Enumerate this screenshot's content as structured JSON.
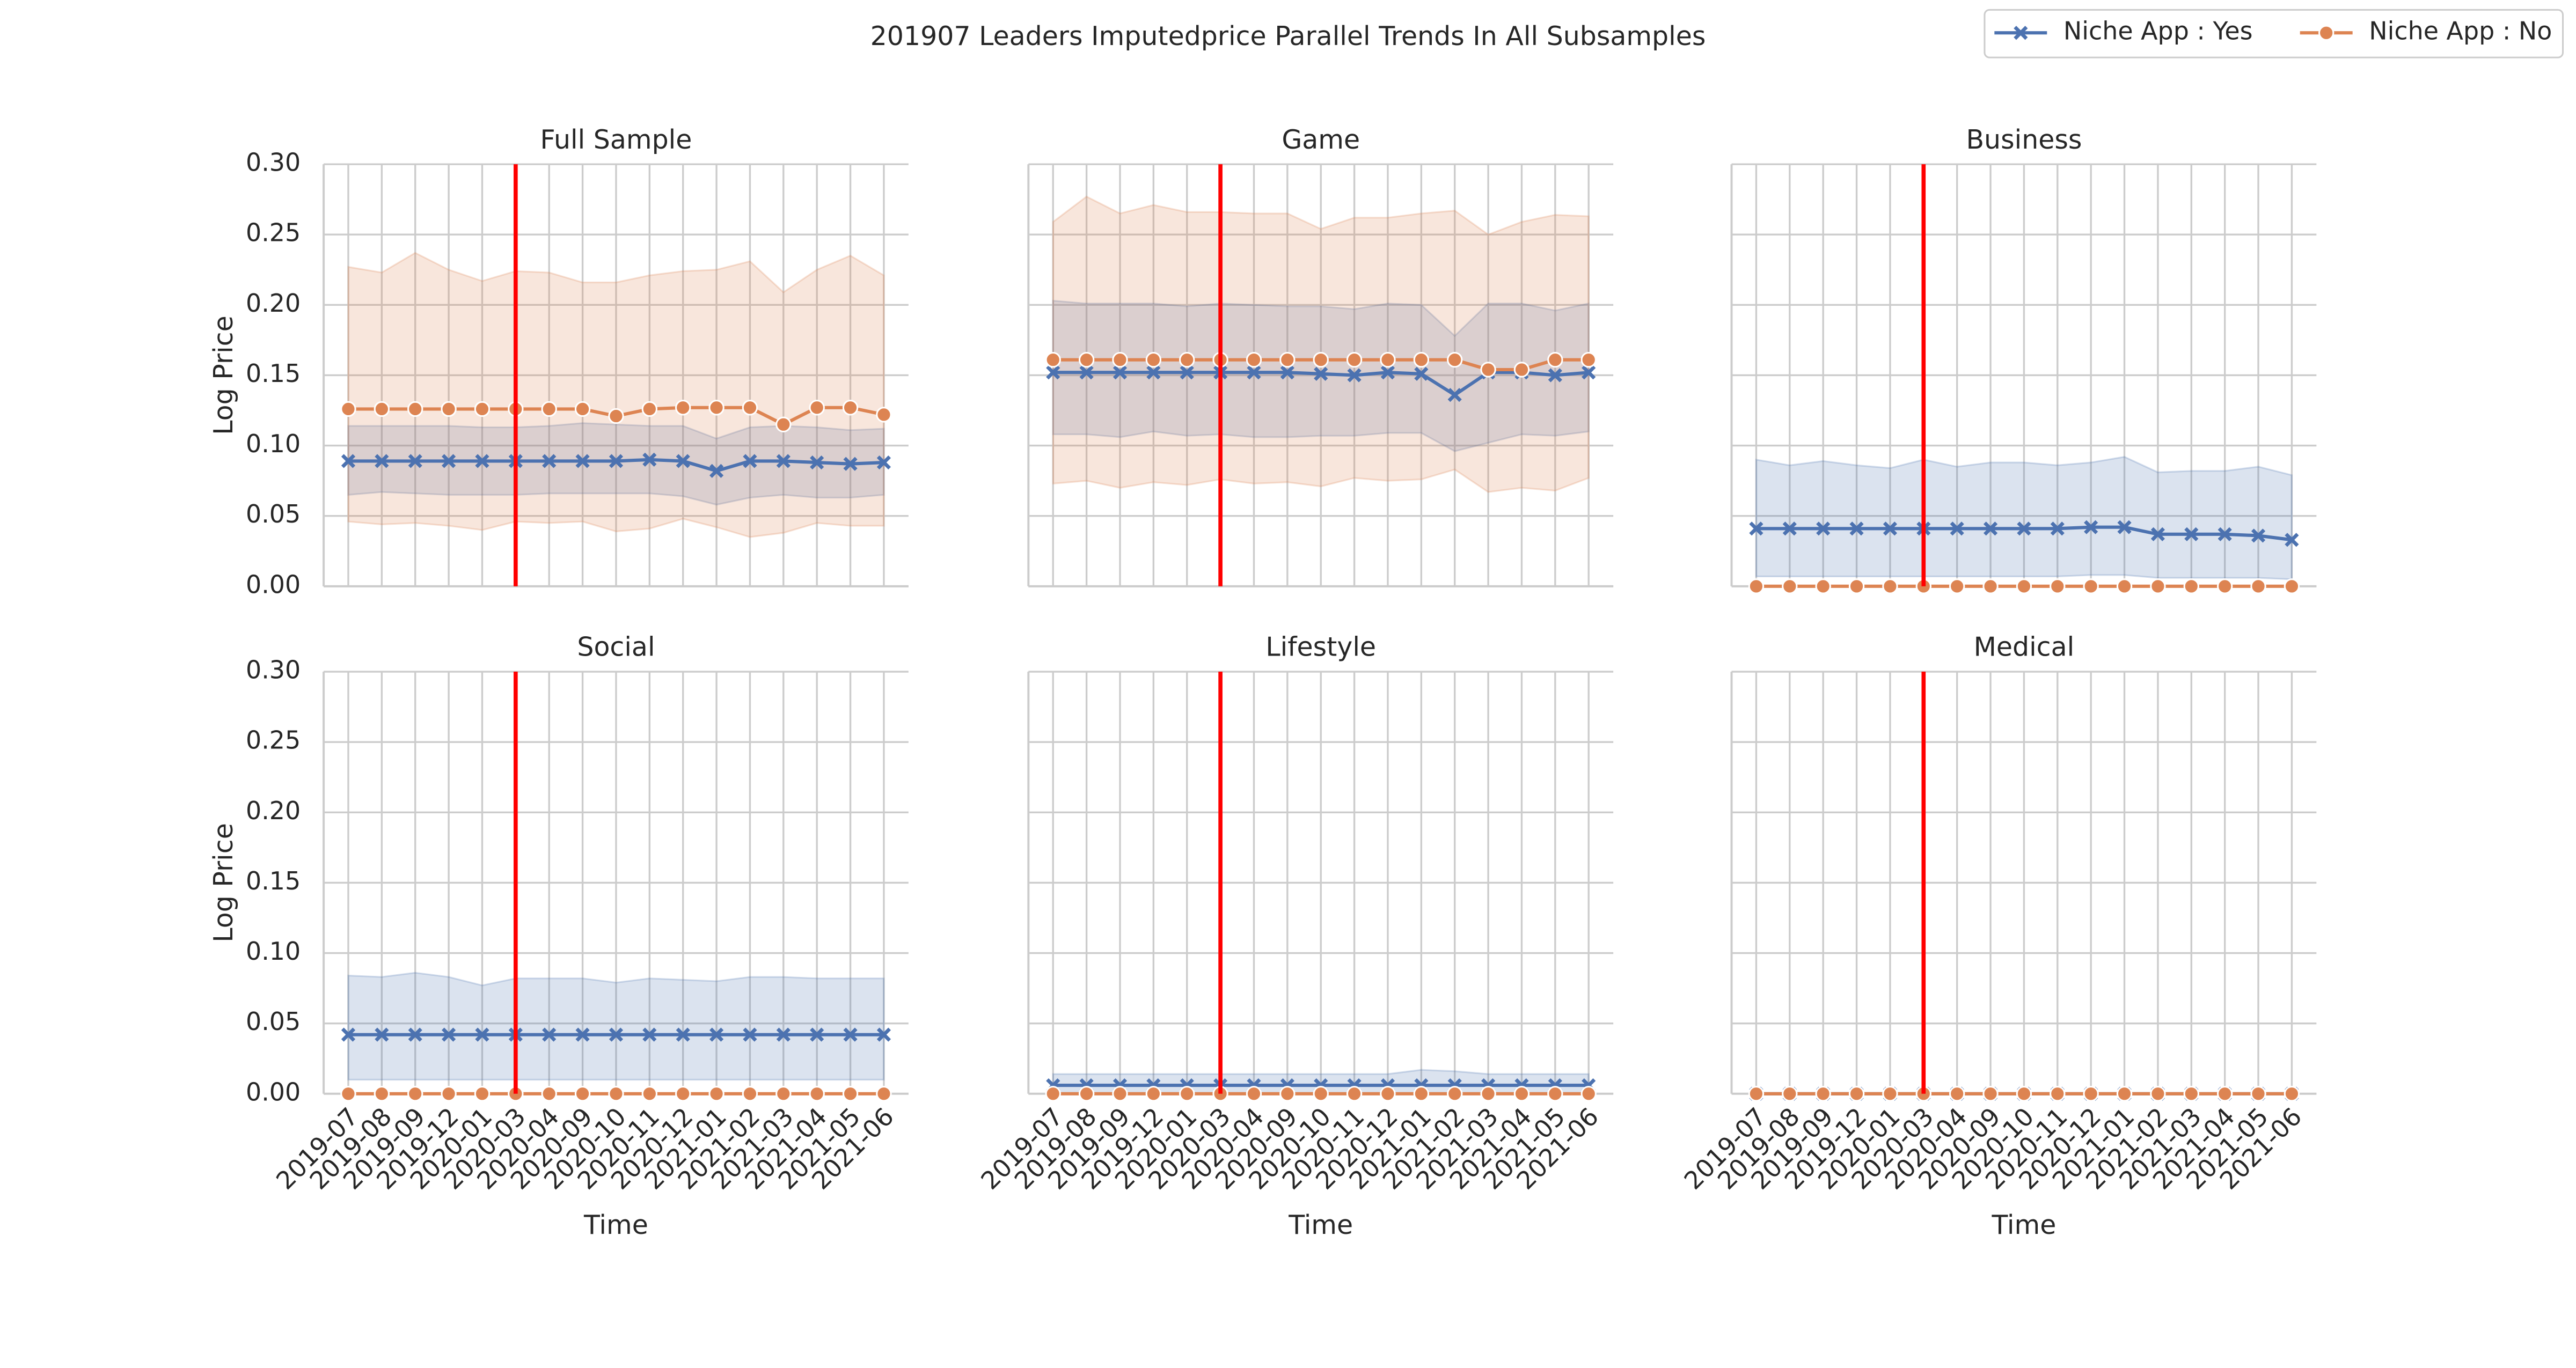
{
  "title": "201907 Leaders Imputedprice Parallel Trends In All Subsamples",
  "chart_data": [
    {
      "type": "line",
      "title": "Full Sample",
      "ylabel": "Log Price",
      "show_ytick_labels": true,
      "show_xtick_labels": false,
      "categories": [
        "2019-07",
        "2019-08",
        "2019-09",
        "2019-12",
        "2020-01",
        "2020-03",
        "2020-04",
        "2020-09",
        "2020-10",
        "2020-11",
        "2020-12",
        "2021-01",
        "2021-02",
        "2021-03",
        "2021-04",
        "2021-05",
        "2021-06"
      ],
      "vline": "2020-03",
      "vline_color": "#ff0000",
      "ylim": [
        0,
        0.3
      ],
      "yticks": [
        {
          "value": 0,
          "label": "0.00"
        },
        {
          "value": 0.05,
          "label": "0.05"
        },
        {
          "value": 0.1,
          "label": "0.10"
        },
        {
          "value": 0.15,
          "label": "0.15"
        },
        {
          "value": 0.2,
          "label": "0.20"
        },
        {
          "value": 0.25,
          "label": "0.25"
        },
        {
          "value": 0.3,
          "label": "0.30"
        }
      ],
      "grid": true,
      "series": [
        {
          "name": "Niche App : Yes",
          "color": "#4c72b0",
          "marker": "x",
          "values": [
            0.089,
            0.089,
            0.089,
            0.089,
            0.089,
            0.089,
            0.089,
            0.089,
            0.089,
            0.09,
            0.089,
            0.082,
            0.089,
            0.089,
            0.088,
            0.087,
            0.088
          ],
          "ci_lower": [
            0.065,
            0.067,
            0.066,
            0.065,
            0.065,
            0.065,
            0.066,
            0.066,
            0.066,
            0.066,
            0.064,
            0.058,
            0.063,
            0.065,
            0.063,
            0.063,
            0.065
          ],
          "ci_upper": [
            0.114,
            0.114,
            0.114,
            0.114,
            0.113,
            0.113,
            0.114,
            0.116,
            0.115,
            0.114,
            0.114,
            0.105,
            0.113,
            0.114,
            0.113,
            0.111,
            0.112
          ]
        },
        {
          "name": "Niche App : No",
          "color": "#dd8452",
          "marker": "o",
          "values": [
            0.126,
            0.126,
            0.126,
            0.126,
            0.126,
            0.126,
            0.126,
            0.126,
            0.121,
            0.126,
            0.127,
            0.127,
            0.127,
            0.115,
            0.127,
            0.127,
            0.122
          ],
          "ci_lower": [
            0.046,
            0.044,
            0.045,
            0.043,
            0.04,
            0.046,
            0.045,
            0.046,
            0.039,
            0.041,
            0.048,
            0.042,
            0.035,
            0.038,
            0.045,
            0.043,
            0.043
          ],
          "ci_upper": [
            0.227,
            0.223,
            0.237,
            0.225,
            0.217,
            0.224,
            0.223,
            0.216,
            0.216,
            0.221,
            0.224,
            0.225,
            0.231,
            0.209,
            0.225,
            0.235,
            0.221
          ]
        }
      ]
    },
    {
      "type": "line",
      "title": "Game",
      "show_ytick_labels": false,
      "show_xtick_labels": false,
      "categories": [
        "2019-07",
        "2019-08",
        "2019-09",
        "2019-12",
        "2020-01",
        "2020-03",
        "2020-04",
        "2020-09",
        "2020-10",
        "2020-11",
        "2020-12",
        "2021-01",
        "2021-02",
        "2021-03",
        "2021-04",
        "2021-05",
        "2021-06"
      ],
      "vline": "2020-03",
      "vline_color": "#ff0000",
      "ylim": [
        0,
        0.3
      ],
      "yticks": [
        0,
        0.05,
        0.1,
        0.15,
        0.2,
        0.25,
        0.3
      ],
      "grid": true,
      "series": [
        {
          "name": "Niche App : Yes",
          "color": "#4c72b0",
          "marker": "x",
          "values": [
            0.152,
            0.152,
            0.152,
            0.152,
            0.152,
            0.152,
            0.152,
            0.152,
            0.151,
            0.15,
            0.152,
            0.151,
            0.136,
            0.152,
            0.152,
            0.15,
            0.152
          ],
          "ci_lower": [
            0.108,
            0.108,
            0.106,
            0.11,
            0.107,
            0.108,
            0.106,
            0.106,
            0.107,
            0.107,
            0.109,
            0.109,
            0.096,
            0.102,
            0.108,
            0.107,
            0.11
          ],
          "ci_upper": [
            0.203,
            0.201,
            0.201,
            0.201,
            0.199,
            0.201,
            0.2,
            0.199,
            0.199,
            0.197,
            0.201,
            0.2,
            0.178,
            0.201,
            0.201,
            0.196,
            0.201
          ]
        },
        {
          "name": "Niche App : No",
          "color": "#dd8452",
          "marker": "o",
          "values": [
            0.161,
            0.161,
            0.161,
            0.161,
            0.161,
            0.161,
            0.161,
            0.161,
            0.161,
            0.161,
            0.161,
            0.161,
            0.161,
            0.154,
            0.154,
            0.161,
            0.161
          ],
          "ci_lower": [
            0.073,
            0.075,
            0.07,
            0.074,
            0.072,
            0.076,
            0.073,
            0.074,
            0.071,
            0.077,
            0.075,
            0.076,
            0.083,
            0.067,
            0.07,
            0.068,
            0.077
          ],
          "ci_upper": [
            0.259,
            0.277,
            0.265,
            0.271,
            0.266,
            0.266,
            0.265,
            0.265,
            0.254,
            0.262,
            0.262,
            0.265,
            0.267,
            0.25,
            0.259,
            0.264,
            0.263
          ]
        }
      ]
    },
    {
      "type": "line",
      "title": "Business",
      "show_ytick_labels": false,
      "show_xtick_labels": false,
      "categories": [
        "2019-07",
        "2019-08",
        "2019-09",
        "2019-12",
        "2020-01",
        "2020-03",
        "2020-04",
        "2020-09",
        "2020-10",
        "2020-11",
        "2020-12",
        "2021-01",
        "2021-02",
        "2021-03",
        "2021-04",
        "2021-05",
        "2021-06"
      ],
      "vline": "2020-03",
      "vline_color": "#ff0000",
      "ylim": [
        0,
        0.3
      ],
      "yticks": [
        0,
        0.05,
        0.1,
        0.15,
        0.2,
        0.25,
        0.3
      ],
      "grid": true,
      "series": [
        {
          "name": "Niche App : Yes",
          "color": "#4c72b0",
          "marker": "x",
          "values": [
            0.041,
            0.041,
            0.041,
            0.041,
            0.041,
            0.041,
            0.041,
            0.041,
            0.041,
            0.041,
            0.042,
            0.042,
            0.037,
            0.037,
            0.037,
            0.036,
            0.033
          ],
          "ci_lower": [
            0.007,
            0.007,
            0.007,
            0.007,
            0.007,
            0.007,
            0.007,
            0.007,
            0.007,
            0.007,
            0.008,
            0.008,
            0.006,
            0.006,
            0.006,
            0.006,
            0.005
          ],
          "ci_upper": [
            0.09,
            0.086,
            0.089,
            0.086,
            0.084,
            0.09,
            0.085,
            0.088,
            0.088,
            0.086,
            0.088,
            0.092,
            0.081,
            0.082,
            0.082,
            0.085,
            0.079
          ]
        },
        {
          "name": "Niche App : No",
          "color": "#dd8452",
          "marker": "o",
          "values": [
            0,
            0,
            0,
            0,
            0,
            0,
            0,
            0,
            0,
            0,
            0,
            0,
            0,
            0,
            0,
            0,
            0
          ]
        }
      ]
    },
    {
      "type": "line",
      "title": "Social",
      "ylabel": "Log Price",
      "xlabel": "Time",
      "show_ytick_labels": true,
      "show_xtick_labels": true,
      "categories": [
        "2019-07",
        "2019-08",
        "2019-09",
        "2019-12",
        "2020-01",
        "2020-03",
        "2020-04",
        "2020-09",
        "2020-10",
        "2020-11",
        "2020-12",
        "2021-01",
        "2021-02",
        "2021-03",
        "2021-04",
        "2021-05",
        "2021-06"
      ],
      "vline": "2020-03",
      "vline_color": "#ff0000",
      "ylim": [
        0,
        0.3
      ],
      "yticks": [
        {
          "value": 0,
          "label": "0.00"
        },
        {
          "value": 0.05,
          "label": "0.05"
        },
        {
          "value": 0.1,
          "label": "0.10"
        },
        {
          "value": 0.15,
          "label": "0.15"
        },
        {
          "value": 0.2,
          "label": "0.20"
        },
        {
          "value": 0.25,
          "label": "0.25"
        },
        {
          "value": 0.3,
          "label": "0.30"
        }
      ],
      "grid": true,
      "series": [
        {
          "name": "Niche App : Yes",
          "color": "#4c72b0",
          "marker": "x",
          "values": [
            0.042,
            0.042,
            0.042,
            0.042,
            0.042,
            0.042,
            0.042,
            0.042,
            0.042,
            0.042,
            0.042,
            0.042,
            0.042,
            0.042,
            0.042,
            0.042,
            0.042
          ],
          "ci_lower": [
            0.01,
            0.01,
            0.01,
            0.01,
            0.01,
            0.01,
            0.01,
            0.01,
            0.01,
            0.01,
            0.01,
            0.01,
            0.01,
            0.01,
            0.01,
            0.01,
            0.01
          ],
          "ci_upper": [
            0.084,
            0.083,
            0.086,
            0.083,
            0.077,
            0.082,
            0.082,
            0.082,
            0.079,
            0.082,
            0.081,
            0.08,
            0.083,
            0.083,
            0.082,
            0.082,
            0.082
          ]
        },
        {
          "name": "Niche App : No",
          "color": "#dd8452",
          "marker": "o",
          "values": [
            0,
            0,
            0,
            0,
            0,
            0,
            0,
            0,
            0,
            0,
            0,
            0,
            0,
            0,
            0,
            0,
            0
          ]
        }
      ]
    },
    {
      "type": "line",
      "title": "Lifestyle",
      "xlabel": "Time",
      "show_ytick_labels": false,
      "show_xtick_labels": true,
      "categories": [
        "2019-07",
        "2019-08",
        "2019-09",
        "2019-12",
        "2020-01",
        "2020-03",
        "2020-04",
        "2020-09",
        "2020-10",
        "2020-11",
        "2020-12",
        "2021-01",
        "2021-02",
        "2021-03",
        "2021-04",
        "2021-05",
        "2021-06"
      ],
      "vline": "2020-03",
      "vline_color": "#ff0000",
      "ylim": [
        0,
        0.3
      ],
      "yticks": [
        0,
        0.05,
        0.1,
        0.15,
        0.2,
        0.25,
        0.3
      ],
      "grid": true,
      "series": [
        {
          "name": "Niche App : Yes",
          "color": "#4c72b0",
          "marker": "x",
          "values": [
            0.006,
            0.006,
            0.006,
            0.006,
            0.006,
            0.006,
            0.006,
            0.006,
            0.006,
            0.006,
            0.006,
            0.006,
            0.006,
            0.006,
            0.006,
            0.006,
            0.006
          ],
          "ci_lower": [
            0,
            0,
            0,
            0,
            0,
            0,
            0,
            0,
            0,
            0,
            0,
            0,
            0,
            0,
            0,
            0,
            0
          ],
          "ci_upper": [
            0.014,
            0.014,
            0.014,
            0.014,
            0.014,
            0.014,
            0.014,
            0.014,
            0.014,
            0.014,
            0.014,
            0.017,
            0.016,
            0.014,
            0.014,
            0.014,
            0.014
          ]
        },
        {
          "name": "Niche App : No",
          "color": "#dd8452",
          "marker": "o",
          "values": [
            0,
            0,
            0,
            0,
            0,
            0,
            0,
            0,
            0,
            0,
            0,
            0,
            0,
            0,
            0,
            0,
            0
          ]
        }
      ]
    },
    {
      "type": "line",
      "title": "Medical",
      "xlabel": "Time",
      "show_ytick_labels": false,
      "show_xtick_labels": true,
      "categories": [
        "2019-07",
        "2019-08",
        "2019-09",
        "2019-12",
        "2020-01",
        "2020-03",
        "2020-04",
        "2020-09",
        "2020-10",
        "2020-11",
        "2020-12",
        "2021-01",
        "2021-02",
        "2021-03",
        "2021-04",
        "2021-05",
        "2021-06"
      ],
      "vline": "2020-03",
      "vline_color": "#ff0000",
      "ylim": [
        0,
        0.3
      ],
      "yticks": [
        0,
        0.05,
        0.1,
        0.15,
        0.2,
        0.25,
        0.3
      ],
      "grid": true,
      "series": [
        {
          "name": "Niche App : Yes",
          "color": "#4c72b0",
          "marker": "x",
          "values": [
            0,
            0,
            0,
            0,
            0,
            0,
            0,
            0,
            0,
            0,
            0,
            0,
            0,
            0,
            0,
            0,
            0
          ]
        },
        {
          "name": "Niche App : No",
          "color": "#dd8452",
          "marker": "o",
          "values": [
            0,
            0,
            0,
            0,
            0,
            0,
            0,
            0,
            0,
            0,
            0,
            0,
            0,
            0,
            0,
            0,
            0
          ]
        }
      ]
    }
  ]
}
